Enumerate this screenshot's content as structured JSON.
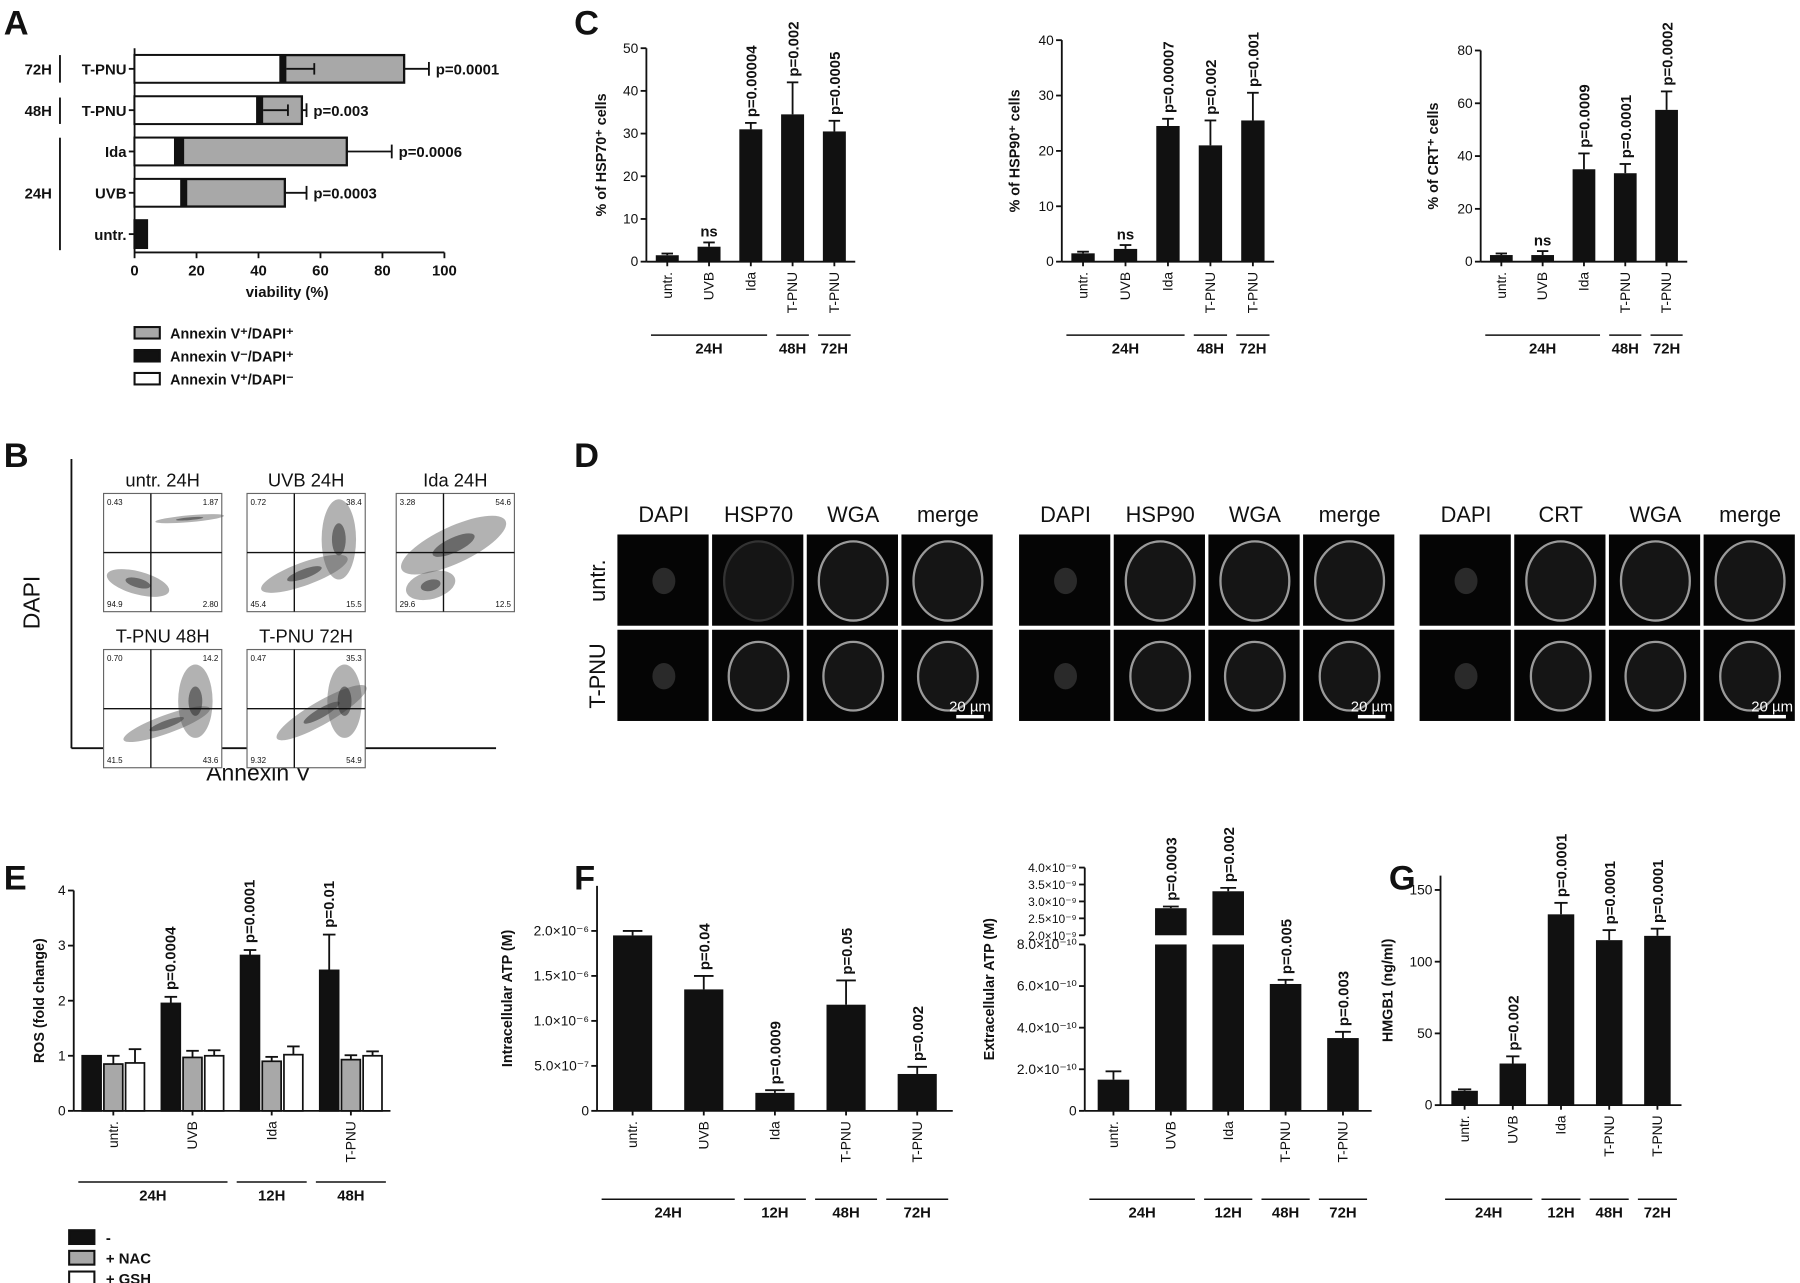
{
  "panel_letters": {
    "A": "A",
    "B": "B",
    "C": "C",
    "D": "D",
    "E": "E",
    "F": "F",
    "G": "G"
  },
  "chart_data": [
    {
      "id": "A",
      "type": "bar",
      "orientation": "horizontal",
      "stacked": true,
      "xlabel": "viability (%)",
      "xlim": [
        0,
        100
      ],
      "xticks": [
        0,
        20,
        40,
        60,
        80,
        100
      ],
      "rows": [
        {
          "label": "T-PNU",
          "group": "72H",
          "white": 47,
          "black": 2,
          "total": 87,
          "black_err": 9,
          "total_err": 8,
          "p": "p=0.0001"
        },
        {
          "label": "T-PNU",
          "group": "48H",
          "white": 39.5,
          "black": 2,
          "total": 54,
          "black_err": 8,
          "total_err": 1.5,
          "p": "p=0.003"
        },
        {
          "label": "Ida",
          "group": "24H",
          "white": 13,
          "black": 3,
          "total": 68.5,
          "black_err": 1.5,
          "total_err": 14.5,
          "p": "p=0.0006"
        },
        {
          "label": "UVB",
          "group": "24H",
          "white": 15,
          "black": 2,
          "total": 48.5,
          "black_err": 1,
          "total_err": 7,
          "p": "p=0.0003"
        },
        {
          "label": "untr.",
          "group": "24H",
          "white": 0.5,
          "black": 3.5,
          "total": 4,
          "black_err": 0.5,
          "total_err": 0,
          "p": ""
        }
      ],
      "group_labels": [
        "72H",
        "48H",
        "24H"
      ],
      "legend": [
        {
          "label": "Annexin V⁺/DAPI⁺",
          "color": "#a8a8a8"
        },
        {
          "label": "Annexin V⁻/DAPI⁺",
          "color": "#111111"
        },
        {
          "label": "Annexin V⁺/DAPI⁻",
          "color": "#ffffff"
        }
      ]
    },
    {
      "id": "C1",
      "type": "bar",
      "ylabel": "% of HSP70⁺ cells",
      "ylim": [
        0,
        50
      ],
      "yticks": [
        0,
        10,
        20,
        30,
        40,
        50
      ],
      "ytick_labels": [
        "0",
        "10",
        "20",
        "30",
        "40",
        "50"
      ],
      "categories": [
        "untr.",
        "UVB",
        "Ida",
        "T-PNU",
        "T-PNU"
      ],
      "values": [
        1.5,
        3.5,
        31,
        34.5,
        30.5
      ],
      "errors": [
        0.4,
        1,
        1.5,
        7.5,
        2.5
      ],
      "annotations": [
        "",
        "ns",
        "p=0.00004",
        "p=0.002",
        "p=0.0005"
      ],
      "groups": [
        {
          "label": "24H",
          "from": 0,
          "to": 2
        },
        {
          "label": "48H",
          "from": 3,
          "to": 3
        },
        {
          "label": "72H",
          "from": 4,
          "to": 4
        }
      ]
    },
    {
      "id": "C2",
      "type": "bar",
      "ylabel": "% of HSP90⁺ cells",
      "ylim": [
        0,
        40
      ],
      "yticks": [
        0,
        10,
        20,
        30,
        40
      ],
      "ytick_labels": [
        "0",
        "10",
        "20",
        "30",
        "40"
      ],
      "categories": [
        "untr.",
        "UVB",
        "Ida",
        "T-PNU",
        "T-PNU"
      ],
      "values": [
        1.5,
        2.3,
        24.5,
        21,
        25.5
      ],
      "errors": [
        0.3,
        0.7,
        1.3,
        4.5,
        5
      ],
      "annotations": [
        "",
        "ns",
        "p=0.00007",
        "p=0.002",
        "p=0.001"
      ],
      "groups": [
        {
          "label": "24H",
          "from": 0,
          "to": 2
        },
        {
          "label": "48H",
          "from": 3,
          "to": 3
        },
        {
          "label": "72H",
          "from": 4,
          "to": 4
        }
      ]
    },
    {
      "id": "C3",
      "type": "bar",
      "ylabel": "% of CRT⁺ cells",
      "ylim": [
        0,
        80
      ],
      "yticks": [
        0,
        20,
        40,
        60,
        80
      ],
      "ytick_labels": [
        "0",
        "20",
        "40",
        "60",
        "80"
      ],
      "categories": [
        "untr.",
        "UVB",
        "Ida",
        "T-PNU",
        "T-PNU"
      ],
      "values": [
        2.5,
        2.5,
        35,
        33.5,
        57.5
      ],
      "errors": [
        0.6,
        1.5,
        6,
        3.5,
        7
      ],
      "annotations": [
        "",
        "ns",
        "p=0.0009",
        "p=0.0001",
        "p=0.0002"
      ],
      "groups": [
        {
          "label": "24H",
          "from": 0,
          "to": 2
        },
        {
          "label": "48H",
          "from": 3,
          "to": 3
        },
        {
          "label": "72H",
          "from": 4,
          "to": 4
        }
      ]
    },
    {
      "id": "E",
      "type": "bar",
      "grouped": true,
      "ylabel": "ROS (fold change)",
      "ylim": [
        0,
        4
      ],
      "yticks": [
        0,
        1,
        2,
        3,
        4
      ],
      "ytick_labels": [
        "0",
        "1",
        "2",
        "3",
        "4"
      ],
      "categories": [
        "untr.",
        "UVB",
        "Ida",
        "T-PNU"
      ],
      "series": [
        {
          "name": "-",
          "color": "#111111",
          "values": [
            1,
            1.95,
            2.82,
            2.55
          ],
          "errors": [
            0,
            0.12,
            0.1,
            0.65
          ]
        },
        {
          "name": "+ NAC",
          "color": "#a8a8a8",
          "values": [
            0.85,
            0.97,
            0.9,
            0.93
          ],
          "errors": [
            0.15,
            0.12,
            0.08,
            0.08
          ]
        },
        {
          "name": "+ GSH",
          "color": "#ffffff",
          "values": [
            0.87,
            1.0,
            1.02,
            1.0
          ],
          "errors": [
            0.25,
            0.1,
            0.15,
            0.08
          ]
        }
      ],
      "annotations": [
        "",
        "p=0.0004",
        "p=0.0001",
        "p=0.01"
      ],
      "groups": [
        {
          "label": "24H",
          "from": 0,
          "to": 1
        },
        {
          "label": "12H",
          "from": 2,
          "to": 2
        },
        {
          "label": "48H",
          "from": 3,
          "to": 3
        }
      ]
    },
    {
      "id": "F1",
      "type": "bar",
      "ylabel": "Intracellular ATP (M)",
      "ylim": [
        0,
        2.5e-06
      ],
      "yticks": [
        0,
        5e-07,
        1e-06,
        1.5e-06,
        2e-06
      ],
      "ytick_labels": [
        "0",
        "5.0×10⁻⁷",
        "1.0×10⁻⁶",
        "1.5×10⁻⁶",
        "2.0×10⁻⁶"
      ],
      "categories": [
        "untr.",
        "UVB",
        "Ida",
        "T-PNU",
        "T-PNU"
      ],
      "values": [
        1.95e-06,
        1.35e-06,
        2e-07,
        1.18e-06,
        4.1e-07
      ],
      "errors": [
        5e-08,
        1.5e-07,
        3e-08,
        2.7e-07,
        8e-08
      ],
      "annotations": [
        "",
        "p=0.04",
        "p=0.0009",
        "p=0.05",
        "p=0.002"
      ],
      "groups": [
        {
          "label": "24H",
          "from": 0,
          "to": 1
        },
        {
          "label": "12H",
          "from": 2,
          "to": 2
        },
        {
          "label": "48H",
          "from": 3,
          "to": 3
        },
        {
          "label": "72H",
          "from": 4,
          "to": 4
        }
      ]
    },
    {
      "id": "F2",
      "type": "bar",
      "broken_axis": true,
      "ylabel": "Extracellular ATP (M)",
      "ylim_lower": [
        0,
        8e-10
      ],
      "ylim_upper": [
        2e-09,
        4e-09
      ],
      "yticks": [
        0,
        2e-10,
        4e-10,
        6e-10,
        8e-10,
        2e-09,
        2.5e-09,
        3e-09,
        3.5e-09,
        4e-09
      ],
      "ytick_labels": [
        "0",
        "2.0×10⁻¹⁰",
        "4.0×10⁻¹⁰",
        "6.0×10⁻¹⁰",
        "8.0×10⁻¹⁰",
        "2.0×10⁻⁹",
        "2.5×10⁻⁹",
        "3.0×10⁻⁹",
        "3.5×10⁻⁹",
        "4.0×10⁻⁹"
      ],
      "categories": [
        "untr.",
        "UVB",
        "Ida",
        "T-PNU",
        "T-PNU"
      ],
      "values": [
        1.5e-10,
        2.8e-09,
        3.3e-09,
        6.1e-10,
        3.5e-10
      ],
      "errors": [
        4e-11,
        5e-11,
        1e-10,
        2e-11,
        3e-11
      ],
      "annotations": [
        "",
        "p=0.0003",
        "p=0.002",
        "p=0.005",
        "p=0.003"
      ],
      "groups": [
        {
          "label": "24H",
          "from": 0,
          "to": 1
        },
        {
          "label": "12H",
          "from": 2,
          "to": 2
        },
        {
          "label": "48H",
          "from": 3,
          "to": 3
        },
        {
          "label": "72H",
          "from": 4,
          "to": 4
        }
      ]
    },
    {
      "id": "G",
      "type": "bar",
      "ylabel": "HMGB1 (ng/ml)",
      "ylim": [
        0,
        160
      ],
      "yticks": [
        0,
        50,
        100,
        150
      ],
      "ytick_labels": [
        "0",
        "50",
        "100",
        "150"
      ],
      "categories": [
        "untr.",
        "UVB",
        "Ida",
        "T-PNU",
        "T-PNU"
      ],
      "values": [
        10,
        29,
        133,
        115,
        118
      ],
      "errors": [
        1,
        5,
        8,
        7,
        5
      ],
      "annotations": [
        "",
        "p=0.002",
        "p=0.0001",
        "p=0.0001",
        "p=0.0001"
      ],
      "groups": [
        {
          "label": "24H",
          "from": 0,
          "to": 1
        },
        {
          "label": "12H",
          "from": 2,
          "to": 2
        },
        {
          "label": "48H",
          "from": 3,
          "to": 3
        },
        {
          "label": "72H",
          "from": 4,
          "to": 4
        }
      ]
    }
  ],
  "flow": {
    "ylabel": "DAPI",
    "xlabel": "Annexin V",
    "plots": [
      {
        "title": "untr. 24H",
        "q": [
          "0.43",
          "1.87",
          "94.9",
          "2.80"
        ]
      },
      {
        "title": "UVB 24H",
        "q": [
          "0.72",
          "38.4",
          "45.4",
          "15.5"
        ]
      },
      {
        "title": "Ida 24H",
        "q": [
          "3.28",
          "54.6",
          "29.6",
          "12.5"
        ]
      },
      {
        "title": "T-PNU 48H",
        "q": [
          "0.70",
          "14.2",
          "41.5",
          "43.6"
        ]
      },
      {
        "title": "T-PNU 72H",
        "q": [
          "0.47",
          "35.3",
          "9.32",
          "54.9"
        ]
      }
    ]
  },
  "microscopy": {
    "rows": [
      "untr.",
      "T-PNU"
    ],
    "scale_bar": "20 µm",
    "groups": [
      {
        "columns": [
          "DAPI",
          "HSP70",
          "WGA",
          "merge"
        ]
      },
      {
        "columns": [
          "DAPI",
          "HSP90",
          "WGA",
          "merge"
        ]
      },
      {
        "columns": [
          "DAPI",
          "CRT",
          "WGA",
          "merge"
        ]
      }
    ]
  }
}
